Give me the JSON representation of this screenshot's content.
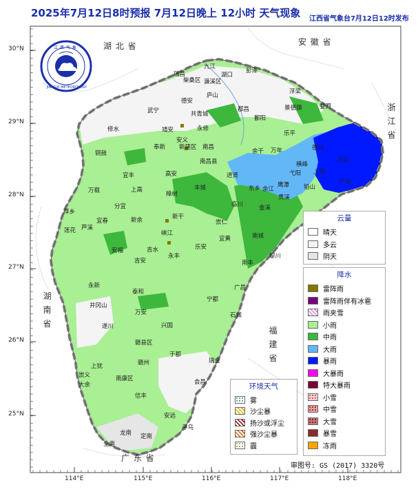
{
  "title": "2025年7月12日8时预报 7月12日晚上 12小时  天气现象",
  "publisher": "江西省气象台7月12日12时发布",
  "review_number": "审图号: GS (2017) 3320号",
  "logo": {
    "name": "JIANGXI METEOROLOGY",
    "icon": "jiangxi-meteorology-logo",
    "chars": "江西气象"
  },
  "lat_labels": [
    "30°N",
    "29°N",
    "28°N",
    "27°N",
    "26°N",
    "25°N"
  ],
  "lon_labels": [
    "114°E",
    "115°E",
    "116°E",
    "117°E",
    "118°E"
  ],
  "regions": {
    "hubei": "湖 北 省",
    "anhui": "安 徽 省",
    "zhejiang": "浙江省",
    "hunan": "湖南省",
    "fujian": "福建省",
    "guangdong": "广 东 省"
  },
  "cities": [
    "九江",
    "湖口",
    "瑞昌",
    "柴桑区",
    "濂溪区",
    "庐山",
    "彭泽",
    "都昌",
    "德安",
    "武宁",
    "共青城",
    "修水",
    "永修",
    "浮梁",
    "婺源",
    "景德镇",
    "鄱阳",
    "乐平",
    "余干",
    "万年",
    "德兴",
    "玉山",
    "上饶",
    "广丰",
    "靖安",
    "安义",
    "奉新",
    "新建区",
    "南昌",
    "南昌县",
    "进贤",
    "东乡",
    "余江",
    "鹰潭",
    "贵溪",
    "铅山",
    "弋阳",
    "横峰",
    "铜鼓",
    "宜丰",
    "高安",
    "丰城",
    "临川",
    "金溪",
    "万载",
    "上高",
    "宜春",
    "分宜",
    "新余",
    "樟树",
    "崇仁",
    "南城",
    "萍乡",
    "芦溪",
    "新干",
    "峡江",
    "乐安",
    "宜黄",
    "南丰",
    "黎川",
    "莲花",
    "安福",
    "吉水",
    "永丰",
    "广昌",
    "永新",
    "井冈山",
    "吉安",
    "泰和",
    "宁都",
    "石城",
    "万安",
    "兴国",
    "于都",
    "瑞金",
    "遂川",
    "赣州",
    "赣县区",
    "会昌",
    "上犹",
    "崇义",
    "大余",
    "南康区",
    "信丰",
    "安远",
    "寻乌",
    "龙南",
    "全南",
    "定南"
  ],
  "legend_cloud": {
    "title": "云量",
    "items": [
      {
        "label": "晴天",
        "color": "#ffffff"
      },
      {
        "label": "多云",
        "color": "#f4f4f4"
      },
      {
        "label": "阴天",
        "color": "#e6e6e6"
      }
    ]
  },
  "legend_precip": {
    "title": "降水",
    "items": [
      {
        "label": "雷阵雨",
        "color": "#857600"
      },
      {
        "label": "雷阵雨伴有冰雹",
        "color": "#7a007a"
      },
      {
        "label": "雨夹雪",
        "color": "#f3b3f0",
        "pattern": "hatch-pink"
      },
      {
        "label": "小雨",
        "color": "#a9ef93"
      },
      {
        "label": "中雨",
        "color": "#3db83d"
      },
      {
        "label": "大雨",
        "color": "#62b7f7"
      },
      {
        "label": "暴雨",
        "color": "#0019ff"
      },
      {
        "label": "大暴雨",
        "color": "#ff00f7"
      },
      {
        "label": "特大暴雨",
        "color": "#7a0033"
      },
      {
        "label": "小雪",
        "color": "#f3d2d2",
        "pattern": "dots-light"
      },
      {
        "label": "中雪",
        "color": "#e3a0a0",
        "pattern": "dots-mid"
      },
      {
        "label": "大雪",
        "color": "#c67676",
        "pattern": "dots-dark"
      },
      {
        "label": "暴雪",
        "color": "#8b2a2a"
      },
      {
        "label": "冻雨",
        "color": "#ffa500"
      }
    ]
  },
  "legend_env": {
    "title": "环境天气",
    "items": [
      {
        "label": "雾",
        "color": "#ffffff",
        "pattern": "dots-teal"
      },
      {
        "label": "沙尘暴",
        "color": "#ffffff",
        "pattern": "hatch-yellow"
      },
      {
        "label": "扬沙或浮尘",
        "color": "#ffffff",
        "pattern": "hatch-darkred"
      },
      {
        "label": "强沙尘暴",
        "color": "#ffffff",
        "pattern": "hatch-orange"
      },
      {
        "label": "霾",
        "color": "#ffffff",
        "pattern": "dots-olive"
      }
    ]
  },
  "forecast_zones": [
    {
      "type": "小雨",
      "description": "most of province"
    },
    {
      "type": "中雨",
      "description": "central, northeast, southeast"
    },
    {
      "type": "大雨",
      "description": "northeast (Poyang east to Shangrao)"
    },
    {
      "type": "暴雨",
      "description": "far northeast (Dexing, Yushan, Wuyuan)"
    },
    {
      "type": "雷阵雨",
      "description": "scattered spots near Jing'an, Anyi, Xinjian, Xinyu, Yongfeng"
    }
  ]
}
